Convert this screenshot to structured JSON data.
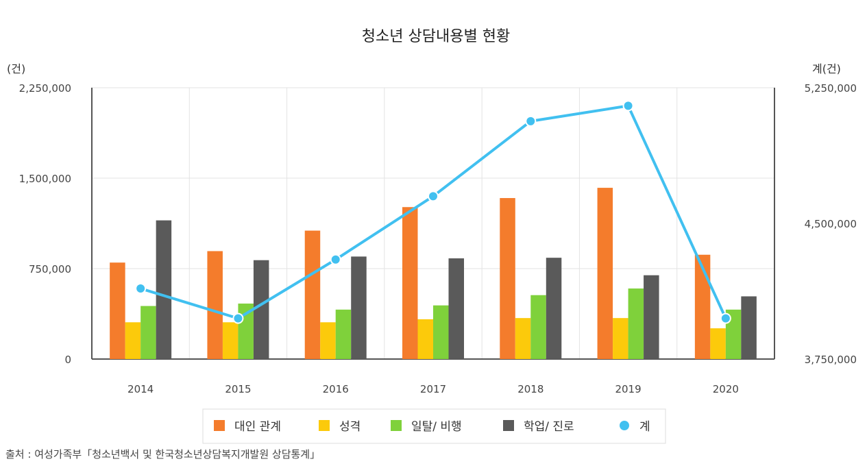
{
  "chart_data": {
    "type": "bar",
    "title": "청소년 상담내용별 현황",
    "ylabel_left": "(건)",
    "ylabel_right": "계(건)",
    "categories": [
      "2014",
      "2015",
      "2016",
      "2017",
      "2018",
      "2019",
      "2020"
    ],
    "ylim_left": [
      0,
      2250000
    ],
    "ylim_right": [
      3750000,
      5250000
    ],
    "yticks_left": [
      "0",
      "750,000",
      "1,500,000",
      "2,250,000"
    ],
    "yticks_right": [
      "3,750,000",
      "4,500,000",
      "5,250,000"
    ],
    "series": [
      {
        "name": "대인 관계",
        "color": "#f47c2c",
        "axis": "left",
        "kind": "bar",
        "values": [
          800000,
          895000,
          1065000,
          1260000,
          1335000,
          1420000,
          865000
        ]
      },
      {
        "name": "성격",
        "color": "#fcca0b",
        "axis": "left",
        "kind": "bar",
        "values": [
          305000,
          305000,
          305000,
          330000,
          340000,
          340000,
          255000
        ]
      },
      {
        "name": "일탈/ 비행",
        "color": "#7fd13b",
        "axis": "left",
        "kind": "bar",
        "values": [
          440000,
          460000,
          410000,
          445000,
          530000,
          585000,
          410000
        ]
      },
      {
        "name": "학업/ 진로",
        "color": "#5a5a5a",
        "axis": "left",
        "kind": "bar",
        "values": [
          1150000,
          820000,
          850000,
          835000,
          840000,
          695000,
          520000
        ]
      },
      {
        "name": "계",
        "color": "#41c0f0",
        "axis": "right",
        "kind": "line",
        "values": [
          4140000,
          3975000,
          4300000,
          4650000,
          5065000,
          5150000,
          3975000
        ]
      }
    ],
    "grid": true,
    "legend": "bottom"
  },
  "source": "출처 : 여성가족부「청소년백서 및 한국청소년상담복지개발원 상담통계」"
}
